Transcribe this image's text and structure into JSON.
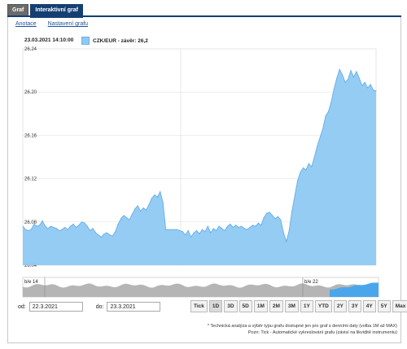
{
  "tabs": [
    {
      "label": "Graf",
      "active": false
    },
    {
      "label": "Interaktivní graf",
      "active": true
    }
  ],
  "links": {
    "annotations": "Anotace",
    "settings": "Nastavení grafu"
  },
  "tooltip_date": "23.03.2021 14:10:00",
  "legend_label": "CZK/EUR - závěr: 26,2",
  "date_range": {
    "from_label": "od:",
    "from_value": "22.3.2021",
    "to_label": "do:",
    "to_value": "23.3.2021"
  },
  "range_buttons": [
    "Tick",
    "1D",
    "3D",
    "5D",
    "1M",
    "2M",
    "3M",
    "1Y",
    "YTD",
    "2Y",
    "3Y",
    "4Y",
    "5Y",
    "Max"
  ],
  "selected_range": "1D",
  "navigator": {
    "left_label": "b/e 14",
    "right_label": "b/e 22"
  },
  "notes": [
    "* Technická analýza a výběr typu grafu dostupné jen pro graf s denními daty (volba 1M až MAX)",
    "Pozn: Tick - Automatické vykreslování grafu (závisí na likviditě instrumentu)"
  ],
  "colors": {
    "area_fill": "#8fc9f3",
    "area_line": "#5ba9e8",
    "nav_fill": "#b5b5b5",
    "nav_highlight": "#4aa6ea"
  },
  "chart_data": {
    "type": "area",
    "ylim": [
      26.04,
      26.24
    ],
    "y_ticks": [
      "26.24",
      "26.20",
      "26.16",
      "26.12",
      "26.08",
      "26.04"
    ],
    "series": [
      {
        "values": [
          26.076,
          26.073,
          26.072,
          26.073,
          26.078,
          26.076,
          26.077,
          26.081,
          26.076,
          26.074,
          26.076,
          26.075,
          26.074,
          26.072,
          26.073,
          26.075,
          26.073,
          26.076,
          26.078,
          26.075,
          26.077,
          26.08,
          26.079,
          26.076,
          26.072,
          26.074,
          26.07,
          26.068,
          26.066,
          26.069,
          26.07,
          26.068,
          26.067,
          26.071,
          26.078,
          26.083,
          26.086,
          26.084,
          26.082,
          26.087,
          26.092,
          26.095,
          26.09,
          26.093,
          26.091,
          26.096,
          26.102,
          26.105,
          26.103,
          26.108,
          26.098,
          26.073,
          26.073,
          26.073,
          26.073,
          26.073,
          26.072,
          26.071,
          26.068,
          26.072,
          26.066,
          26.07,
          26.072,
          26.069,
          26.073,
          26.071,
          26.076,
          26.07,
          26.074,
          26.072,
          26.076,
          26.074,
          26.072,
          26.076,
          26.078,
          26.075,
          26.077,
          26.075,
          26.076,
          26.074,
          26.073,
          26.075,
          26.077,
          26.076,
          26.079,
          26.077,
          26.084,
          26.088,
          26.089,
          26.086,
          26.083,
          26.085,
          26.082,
          26.07,
          26.062,
          26.072,
          26.09,
          26.104,
          26.118,
          26.126,
          26.13,
          26.128,
          26.134,
          26.131,
          26.14,
          26.15,
          26.158,
          26.166,
          26.178,
          26.182,
          26.191,
          26.203,
          26.213,
          26.221,
          26.216,
          26.209,
          26.212,
          26.22,
          26.214,
          26.219,
          26.213,
          26.206,
          26.209,
          26.204,
          26.207,
          26.202,
          26.201
        ]
      }
    ]
  }
}
